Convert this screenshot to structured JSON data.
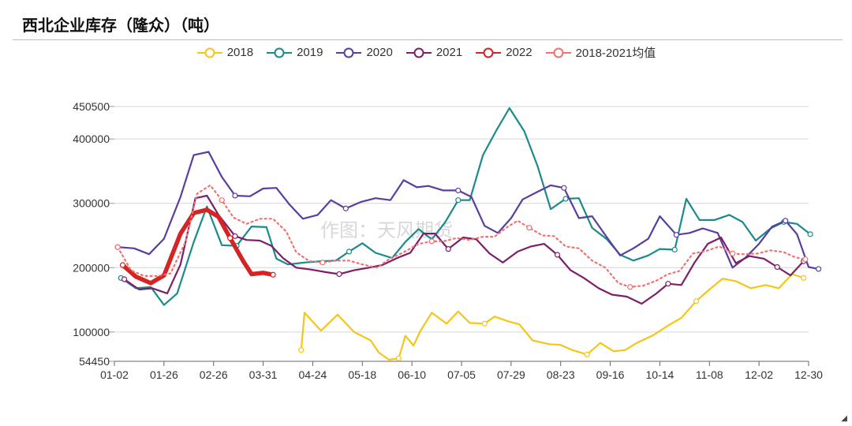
{
  "chart_data": {
    "type": "line",
    "title": "西北企业库存（隆众）（吨）",
    "watermark": "作图：天风期货",
    "x": [
      "01-02",
      "01-26",
      "02-26",
      "03-31",
      "04-24",
      "05-18",
      "06-10",
      "07-05",
      "07-29",
      "08-23",
      "09-16",
      "10-14",
      "11-08",
      "12-02",
      "12-30"
    ],
    "ytick_labels": [
      "450500",
      "400000",
      "300000",
      "200000",
      "100000",
      "54450"
    ],
    "ylim": [
      54450,
      450500
    ],
    "series": [
      {
        "name": "2018",
        "color": "#F5C518",
        "points": [
          [
            11.3,
            72000
          ],
          [
            11.5,
            130000
          ],
          [
            12.5,
            102000
          ],
          [
            13.5,
            127000
          ],
          [
            14.5,
            100000
          ],
          [
            15.5,
            87000
          ],
          [
            16.0,
            68000
          ],
          [
            16.6,
            57000
          ],
          [
            17.2,
            59000
          ],
          [
            17.6,
            94000
          ],
          [
            18.1,
            79000
          ],
          [
            18.5,
            101000
          ],
          [
            19.2,
            130000
          ],
          [
            20.1,
            113000
          ],
          [
            20.8,
            132000
          ],
          [
            21.5,
            114000
          ],
          [
            22.4,
            113000
          ],
          [
            23.0,
            124000
          ],
          [
            23.9,
            116000
          ],
          [
            24.5,
            112000
          ],
          [
            25.3,
            87000
          ],
          [
            26.3,
            81000
          ],
          [
            27.0,
            80000
          ],
          [
            27.7,
            72000
          ],
          [
            28.6,
            65000
          ],
          [
            29.4,
            83000
          ],
          [
            30.2,
            70000
          ],
          [
            30.9,
            72000
          ],
          [
            31.6,
            83000
          ],
          [
            32.6,
            95000
          ],
          [
            33.5,
            110000
          ],
          [
            34.3,
            122000
          ],
          [
            35.2,
            148000
          ],
          [
            36.0,
            166000
          ],
          [
            36.8,
            183000
          ],
          [
            37.6,
            179000
          ],
          [
            38.5,
            168000
          ],
          [
            39.4,
            173000
          ],
          [
            40.2,
            168000
          ],
          [
            41.0,
            190000
          ],
          [
            41.7,
            184000
          ]
        ]
      },
      {
        "name": "2019",
        "color": "#1B8A8A",
        "points": [
          [
            0.4,
            184000
          ],
          [
            1.3,
            168000
          ],
          [
            2.2,
            170000
          ],
          [
            3.0,
            142000
          ],
          [
            3.8,
            160000
          ],
          [
            4.8,
            240000
          ],
          [
            5.6,
            295000
          ],
          [
            6.5,
            235000
          ],
          [
            7.4,
            234000
          ],
          [
            8.3,
            264000
          ],
          [
            9.2,
            263000
          ],
          [
            9.8,
            214000
          ],
          [
            10.5,
            205000
          ],
          [
            11.5,
            208000
          ],
          [
            12.5,
            210000
          ],
          [
            13.4,
            211000
          ],
          [
            14.2,
            225000
          ],
          [
            15.0,
            238000
          ],
          [
            15.8,
            223000
          ],
          [
            16.8,
            215000
          ],
          [
            17.6,
            240000
          ],
          [
            18.4,
            260000
          ],
          [
            19.2,
            244000
          ],
          [
            20.0,
            270000
          ],
          [
            20.8,
            305000
          ],
          [
            21.5,
            305000
          ],
          [
            22.3,
            375000
          ],
          [
            23.1,
            413000
          ],
          [
            23.9,
            448000
          ],
          [
            24.8,
            412000
          ],
          [
            25.6,
            358000
          ],
          [
            26.4,
            291000
          ],
          [
            27.3,
            307000
          ],
          [
            28.1,
            308000
          ],
          [
            28.9,
            262000
          ],
          [
            29.8,
            244000
          ],
          [
            30.6,
            220000
          ],
          [
            31.4,
            211000
          ],
          [
            32.3,
            219000
          ],
          [
            33.0,
            229000
          ],
          [
            33.9,
            228000
          ],
          [
            34.6,
            307000
          ],
          [
            35.4,
            274000
          ],
          [
            36.3,
            274000
          ],
          [
            37.2,
            282000
          ],
          [
            38.0,
            271000
          ],
          [
            38.8,
            242000
          ],
          [
            39.7,
            261000
          ],
          [
            40.5,
            271000
          ],
          [
            41.3,
            268000
          ],
          [
            42.1,
            252000
          ]
        ]
      },
      {
        "name": "2020",
        "color": "#5A3E9E",
        "points": [
          [
            0.2,
            232000
          ],
          [
            1.2,
            230000
          ],
          [
            2.1,
            221000
          ],
          [
            3.0,
            245000
          ],
          [
            4.0,
            310000
          ],
          [
            4.8,
            375000
          ],
          [
            5.7,
            380000
          ],
          [
            6.5,
            341000
          ],
          [
            7.3,
            312000
          ],
          [
            8.2,
            311000
          ],
          [
            9.0,
            323000
          ],
          [
            9.8,
            324000
          ],
          [
            10.6,
            298000
          ],
          [
            11.4,
            276000
          ],
          [
            12.3,
            282000
          ],
          [
            13.1,
            305000
          ],
          [
            14.0,
            292000
          ],
          [
            14.9,
            302000
          ],
          [
            15.8,
            308000
          ],
          [
            16.7,
            305000
          ],
          [
            17.5,
            336000
          ],
          [
            18.3,
            325000
          ],
          [
            19.0,
            327000
          ],
          [
            19.9,
            320000
          ],
          [
            20.8,
            320000
          ],
          [
            21.6,
            310000
          ],
          [
            22.4,
            265000
          ],
          [
            23.2,
            254000
          ],
          [
            24.0,
            277000
          ],
          [
            24.7,
            306000
          ],
          [
            25.6,
            318000
          ],
          [
            26.4,
            328000
          ],
          [
            27.2,
            324000
          ],
          [
            28.1,
            277000
          ],
          [
            28.9,
            280000
          ],
          [
            29.8,
            247000
          ],
          [
            30.6,
            219000
          ],
          [
            31.4,
            230000
          ],
          [
            32.3,
            245000
          ],
          [
            33.0,
            280000
          ],
          [
            34.0,
            251000
          ],
          [
            34.8,
            254000
          ],
          [
            35.6,
            261000
          ],
          [
            36.5,
            254000
          ],
          [
            37.4,
            200000
          ],
          [
            38.2,
            216000
          ],
          [
            39.0,
            237000
          ],
          [
            39.8,
            264000
          ],
          [
            40.6,
            273000
          ],
          [
            41.3,
            252000
          ],
          [
            42.0,
            201000
          ],
          [
            42.6,
            198000
          ]
        ]
      },
      {
        "name": "2021",
        "color": "#7B1F6B",
        "points": [
          [
            0.6,
            182000
          ],
          [
            1.5,
            166000
          ],
          [
            2.3,
            168000
          ],
          [
            3.2,
            160000
          ],
          [
            4.0,
            205000
          ],
          [
            4.9,
            308000
          ],
          [
            5.6,
            312000
          ],
          [
            6.3,
            282000
          ],
          [
            7.3,
            249000
          ],
          [
            8.0,
            243000
          ],
          [
            8.8,
            242000
          ],
          [
            9.5,
            234000
          ],
          [
            10.2,
            215000
          ],
          [
            11.0,
            200000
          ],
          [
            11.9,
            197000
          ],
          [
            12.8,
            193000
          ],
          [
            13.6,
            190000
          ],
          [
            14.5,
            196000
          ],
          [
            15.4,
            200000
          ],
          [
            16.2,
            204000
          ],
          [
            17.1,
            215000
          ],
          [
            17.9,
            223000
          ],
          [
            18.7,
            253000
          ],
          [
            19.4,
            253000
          ],
          [
            20.2,
            229000
          ],
          [
            21.1,
            247000
          ],
          [
            21.9,
            244000
          ],
          [
            22.7,
            222000
          ],
          [
            23.5,
            208000
          ],
          [
            24.4,
            225000
          ],
          [
            25.2,
            233000
          ],
          [
            26.0,
            237000
          ],
          [
            26.8,
            220000
          ],
          [
            27.6,
            196000
          ],
          [
            28.4,
            184000
          ],
          [
            29.3,
            168000
          ],
          [
            30.1,
            158000
          ],
          [
            31.0,
            155000
          ],
          [
            31.9,
            144000
          ],
          [
            32.8,
            160000
          ],
          [
            33.5,
            175000
          ],
          [
            34.3,
            173000
          ],
          [
            35.1,
            208000
          ],
          [
            35.9,
            237000
          ],
          [
            36.7,
            247000
          ],
          [
            37.6,
            207000
          ],
          [
            38.4,
            218000
          ],
          [
            39.3,
            214000
          ],
          [
            40.1,
            201000
          ],
          [
            40.9,
            188000
          ],
          [
            41.7,
            210000
          ]
        ]
      },
      {
        "name": "2022",
        "color": "#D42424",
        "points": [
          [
            0.5,
            204000
          ],
          [
            1.3,
            186000
          ],
          [
            2.2,
            176000
          ],
          [
            3.0,
            188000
          ],
          [
            4.0,
            253000
          ],
          [
            4.8,
            285000
          ],
          [
            5.6,
            290000
          ],
          [
            6.3,
            279000
          ],
          [
            7.0,
            246000
          ],
          [
            7.8,
            210000
          ],
          [
            8.3,
            190000
          ],
          [
            9.0,
            192000
          ],
          [
            9.6,
            189000
          ]
        ]
      },
      {
        "name": "2018-2021均值",
        "color": "#F37070",
        "points": [
          [
            0.2,
            232000
          ],
          [
            1.0,
            196000
          ],
          [
            1.8,
            187000
          ],
          [
            2.6,
            187000
          ],
          [
            3.4,
            191000
          ],
          [
            4.3,
            240000
          ],
          [
            5.0,
            315000
          ],
          [
            5.8,
            328000
          ],
          [
            6.5,
            305000
          ],
          [
            7.2,
            278000
          ],
          [
            8.0,
            268000
          ],
          [
            8.8,
            276000
          ],
          [
            9.6,
            276000
          ],
          [
            10.4,
            256000
          ],
          [
            11.0,
            224000
          ],
          [
            11.8,
            210000
          ],
          [
            12.6,
            208000
          ],
          [
            13.4,
            211000
          ],
          [
            14.2,
            211000
          ],
          [
            15.0,
            205000
          ],
          [
            15.9,
            200000
          ],
          [
            16.6,
            213000
          ],
          [
            17.5,
            224000
          ],
          [
            18.4,
            237000
          ],
          [
            19.2,
            241000
          ],
          [
            19.9,
            241000
          ],
          [
            20.7,
            246000
          ],
          [
            21.5,
            243000
          ],
          [
            22.3,
            248000
          ],
          [
            23.0,
            248000
          ],
          [
            23.7,
            262000
          ],
          [
            24.4,
            273000
          ],
          [
            25.1,
            262000
          ],
          [
            25.9,
            250000
          ],
          [
            26.6,
            249000
          ],
          [
            27.3,
            233000
          ],
          [
            28.1,
            230000
          ],
          [
            28.9,
            211000
          ],
          [
            29.7,
            200000
          ],
          [
            30.5,
            176000
          ],
          [
            31.2,
            170000
          ],
          [
            32.0,
            172000
          ],
          [
            32.8,
            180000
          ],
          [
            33.5,
            190000
          ],
          [
            34.2,
            195000
          ],
          [
            35.0,
            222000
          ],
          [
            35.8,
            226000
          ],
          [
            36.6,
            233000
          ],
          [
            37.4,
            222000
          ],
          [
            38.1,
            221000
          ],
          [
            38.9,
            222000
          ],
          [
            39.7,
            227000
          ],
          [
            40.5,
            224000
          ],
          [
            41.2,
            216000
          ],
          [
            41.8,
            213000
          ]
        ]
      }
    ]
  }
}
